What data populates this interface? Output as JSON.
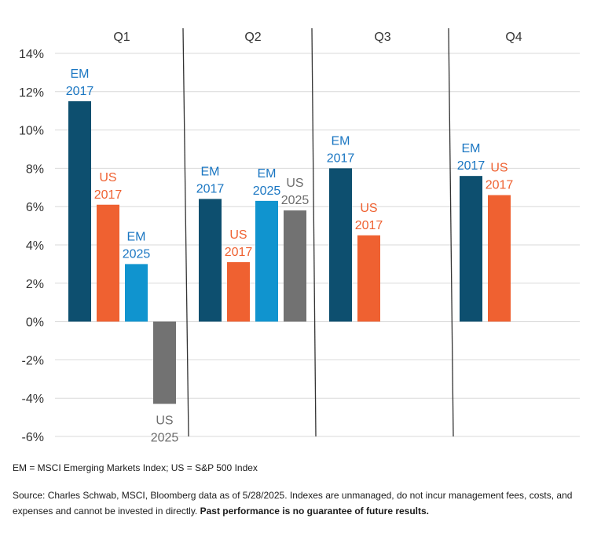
{
  "chart_data": {
    "type": "bar",
    "quarters": [
      "Q1",
      "Q2",
      "Q3",
      "Q4"
    ],
    "ylim": [
      -6,
      14
    ],
    "yticks": [
      -6,
      -4,
      -2,
      0,
      2,
      4,
      6,
      8,
      10,
      12,
      14
    ],
    "ytick_labels": [
      "-6%",
      "-4%",
      "-2%",
      "0%",
      "2%",
      "4%",
      "6%",
      "8%",
      "10%",
      "12%",
      "14%"
    ],
    "grid": true,
    "colors": {
      "EM 2017": "#0d4f6f",
      "US 2017": "#ef6131",
      "EM 2025": "#1094cf",
      "US 2025": "#727272"
    },
    "label_colors": {
      "EM 2017": "#1a76c2",
      "US 2017": "#ef6131",
      "EM 2025": "#1a76c2",
      "US 2025": "#6d6d6d"
    },
    "series": [
      {
        "key": "EM 2017",
        "label_line1": "EM",
        "label_line2": "2017",
        "values": [
          11.5,
          6.4,
          8.0,
          7.6
        ]
      },
      {
        "key": "US 2017",
        "label_line1": "US",
        "label_line2": "2017",
        "values": [
          6.1,
          3.1,
          4.5,
          6.6
        ]
      },
      {
        "key": "EM 2025",
        "label_line1": "EM",
        "label_line2": "2025",
        "values": [
          3.0,
          6.3,
          null,
          null
        ]
      },
      {
        "key": "US 2025",
        "label_line1": "US",
        "label_line2": "2025",
        "values": [
          -4.3,
          5.8,
          null,
          null
        ]
      }
    ]
  },
  "footnotes": {
    "legend": "EM = MSCI Emerging Markets Index; US = S&P 500 Index",
    "source": "Source: Charles Schwab, MSCI, Bloomberg data as of 5/28/2025. Indexes are unmanaged, do not incur management fees, costs, and expenses and cannot be invested in directly.",
    "disclaimer": "Past performance is no guarantee of future results."
  }
}
